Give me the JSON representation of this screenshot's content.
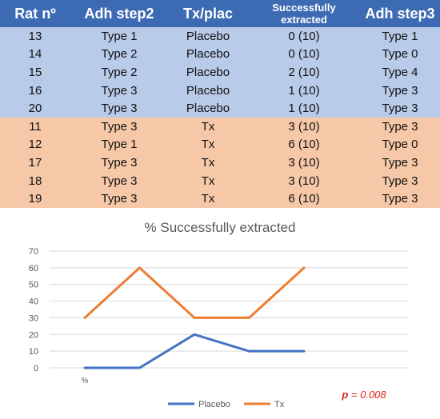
{
  "table": {
    "headers": [
      "Rat nº",
      "Adh step2",
      "Tx/plac",
      "Successfully extracted",
      "Adh step3"
    ],
    "rows": [
      {
        "group": "placebo",
        "cells": [
          "13",
          "Type 1",
          "Placebo",
          "0 (10)",
          "Type 1"
        ]
      },
      {
        "group": "placebo",
        "cells": [
          "14",
          "Type 2",
          "Placebo",
          "0 (10)",
          "Type 0"
        ]
      },
      {
        "group": "placebo",
        "cells": [
          "15",
          "Type 2",
          "Placebo",
          "2 (10)",
          "Type 4"
        ]
      },
      {
        "group": "placebo",
        "cells": [
          "16",
          "Type 3",
          "Placebo",
          "1 (10)",
          "Type 3"
        ]
      },
      {
        "group": "placebo",
        "cells": [
          "20",
          "Type 3",
          "Placebo",
          "1 (10)",
          "Type 3"
        ]
      },
      {
        "group": "tx",
        "cells": [
          "11",
          "Type 3",
          "Tx",
          "3 (10)",
          "Type 3"
        ]
      },
      {
        "group": "tx",
        "cells": [
          "12",
          "Type 1",
          "Tx",
          "6 (10)",
          "Type 0"
        ]
      },
      {
        "group": "tx",
        "cells": [
          "17",
          "Type 3",
          "Tx",
          "3 (10)",
          "Type 3"
        ]
      },
      {
        "group": "tx",
        "cells": [
          "18",
          "Type 3",
          "Tx",
          "3 (10)",
          "Type 3"
        ]
      },
      {
        "group": "tx",
        "cells": [
          "19",
          "Type 3",
          "Tx",
          "6 (10)",
          "Type 3"
        ]
      }
    ],
    "colors": {
      "header": "#3d6bb3",
      "placebo_row": "#b8cbe9",
      "tx_row": "#f6c8a8"
    }
  },
  "chart_data": {
    "type": "line",
    "title": "% Successfully extracted",
    "categories": [
      "%",
      "",
      "",
      "",
      ""
    ],
    "y_ticks": [
      0,
      10,
      20,
      30,
      40,
      50,
      60,
      70
    ],
    "ylim": [
      0,
      70
    ],
    "grid": true,
    "legend_position": "bottom",
    "series": [
      {
        "name": "Placebo",
        "color": "#4472c4",
        "values": [
          0,
          0,
          20,
          10,
          10
        ]
      },
      {
        "name": "Tx",
        "color": "#ed7d31",
        "values": [
          30,
          60,
          30,
          30,
          60
        ]
      }
    ],
    "annotation": "p = 0.008"
  }
}
